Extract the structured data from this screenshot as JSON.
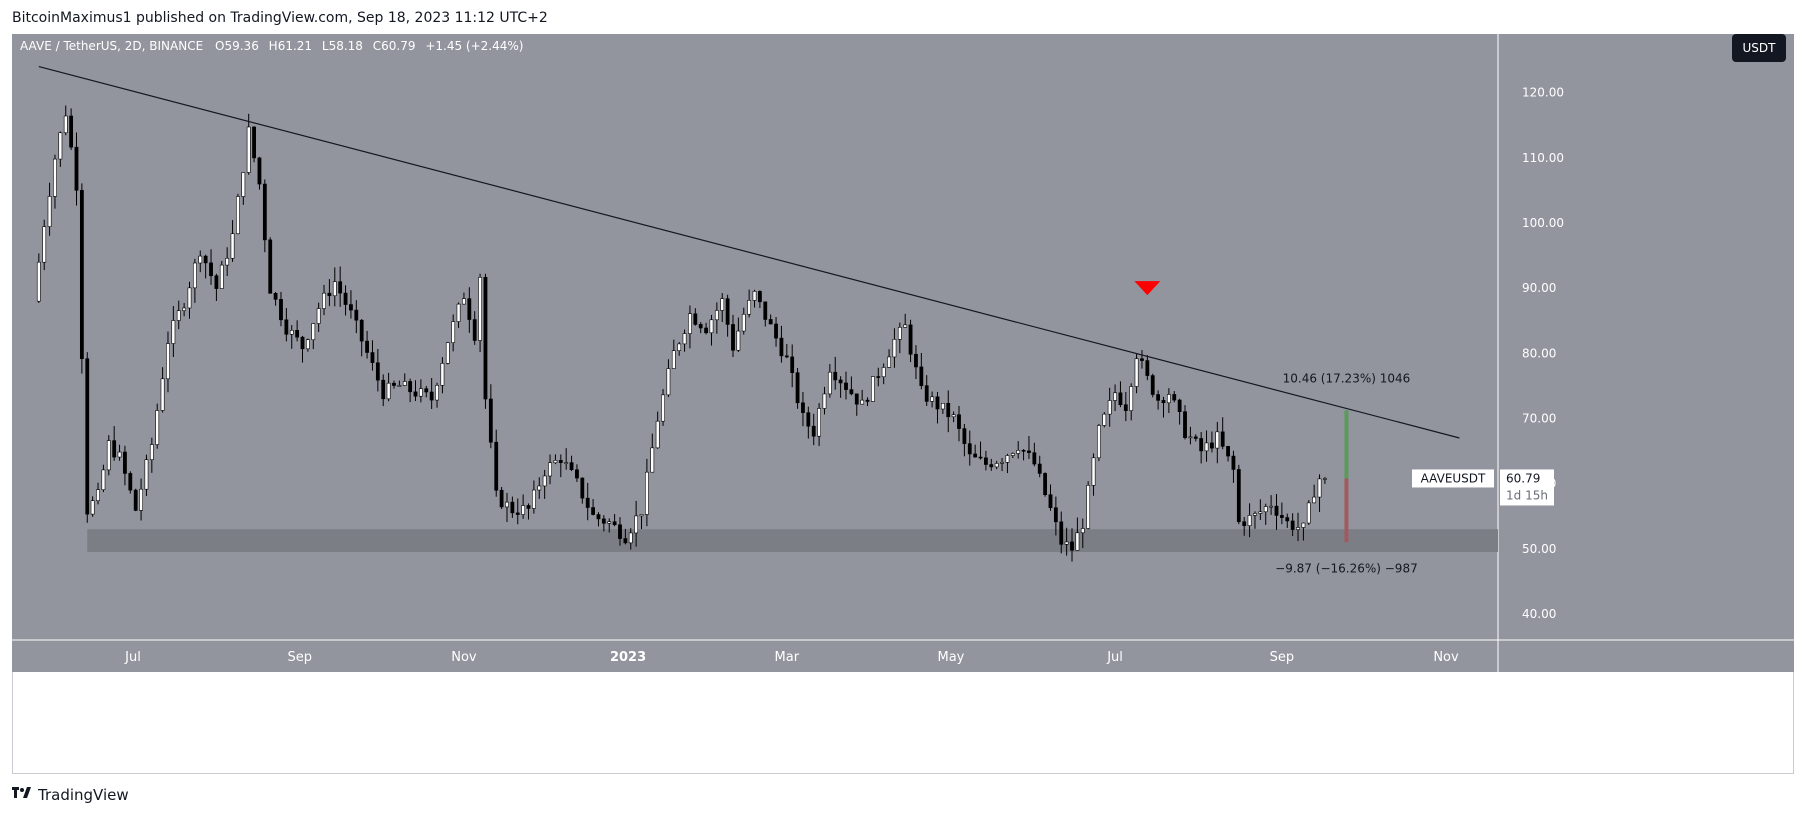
{
  "header": {
    "publish_text": "BitcoinMaximus1 published on TradingView.com, Sep 18, 2023 11:12 UTC+2"
  },
  "footer": {
    "brand": "TradingView"
  },
  "symbol_bar": {
    "title": "AAVE / TetherUS, 2D, BINANCE",
    "open_label": "O",
    "open": "59.36",
    "high_label": "H",
    "high": "61.21",
    "low_label": "L",
    "low": "58.18",
    "close_label": "C",
    "close": "60.79",
    "change": "+1.45 (+2.44%)"
  },
  "currency_button": "USDT",
  "price_tag": {
    "symbol": "AAVEUSDT",
    "price": "60.79",
    "countdown": "1d 15h"
  },
  "annotations": {
    "upper": "10.46 (17.23%) 1046",
    "lower": "−9.87 (−16.26%) −987"
  },
  "colors": {
    "background": "#93959e",
    "candle_up": "#ffffff",
    "candle_down": "#000000",
    "support_zone": "#7c7e86",
    "target_up": "#5a9a5a",
    "target_down": "#a05a5e",
    "marker": "#ff0000"
  },
  "chart_data": {
    "type": "candlestick",
    "symbol": "AAVEUSDT",
    "timeframe": "2D",
    "exchange": "BINANCE",
    "y_axis": {
      "ticks": [
        40,
        50,
        60,
        70,
        80,
        90,
        100,
        110,
        120
      ],
      "labels": [
        "40.00",
        "50.00",
        "60.00",
        "70.00",
        "80.00",
        "90.00",
        "100.00",
        "110.00",
        "120.00"
      ],
      "range": [
        36,
        129
      ]
    },
    "x_axis": {
      "labels": [
        "Jul",
        "Sep",
        "Nov",
        "2023",
        "Mar",
        "May",
        "Jul",
        "Sep",
        "Nov"
      ]
    },
    "keypoints": [
      {
        "d": "2022-05-27",
        "p": 88
      },
      {
        "d": "2022-05-31",
        "p": 100
      },
      {
        "d": "2022-06-04",
        "p": 110
      },
      {
        "d": "2022-06-08",
        "p": 117
      },
      {
        "d": "2022-06-12",
        "p": 106
      },
      {
        "d": "2022-06-14",
        "p": 80
      },
      {
        "d": "2022-06-16",
        "p": 56
      },
      {
        "d": "2022-06-20",
        "p": 58
      },
      {
        "d": "2022-06-24",
        "p": 66
      },
      {
        "d": "2022-06-28",
        "p": 64
      },
      {
        "d": "2022-07-04",
        "p": 56
      },
      {
        "d": "2022-07-10",
        "p": 66
      },
      {
        "d": "2022-07-16",
        "p": 82
      },
      {
        "d": "2022-07-22",
        "p": 88
      },
      {
        "d": "2022-07-28",
        "p": 96
      },
      {
        "d": "2022-08-03",
        "p": 90
      },
      {
        "d": "2022-08-09",
        "p": 98
      },
      {
        "d": "2022-08-15",
        "p": 114
      },
      {
        "d": "2022-08-19",
        "p": 106
      },
      {
        "d": "2022-08-23",
        "p": 90
      },
      {
        "d": "2022-08-29",
        "p": 84
      },
      {
        "d": "2022-09-04",
        "p": 81
      },
      {
        "d": "2022-09-10",
        "p": 87
      },
      {
        "d": "2022-09-16",
        "p": 91
      },
      {
        "d": "2022-09-22",
        "p": 86
      },
      {
        "d": "2022-09-28",
        "p": 80
      },
      {
        "d": "2022-10-04",
        "p": 74
      },
      {
        "d": "2022-10-10",
        "p": 75
      },
      {
        "d": "2022-10-16",
        "p": 74
      },
      {
        "d": "2022-10-22",
        "p": 73
      },
      {
        "d": "2022-10-28",
        "p": 82
      },
      {
        "d": "2022-11-03",
        "p": 89
      },
      {
        "d": "2022-11-07",
        "p": 83
      },
      {
        "d": "2022-11-09",
        "p": 92
      },
      {
        "d": "2022-11-11",
        "p": 73
      },
      {
        "d": "2022-11-15",
        "p": 58
      },
      {
        "d": "2022-11-21",
        "p": 56
      },
      {
        "d": "2022-11-27",
        "p": 56
      },
      {
        "d": "2022-12-03",
        "p": 62
      },
      {
        "d": "2022-12-09",
        "p": 64
      },
      {
        "d": "2022-12-15",
        "p": 60
      },
      {
        "d": "2022-12-21",
        "p": 55
      },
      {
        "d": "2022-12-27",
        "p": 54
      },
      {
        "d": "2023-01-02",
        "p": 52
      },
      {
        "d": "2023-01-08",
        "p": 56
      },
      {
        "d": "2023-01-14",
        "p": 70
      },
      {
        "d": "2023-01-20",
        "p": 80
      },
      {
        "d": "2023-01-26",
        "p": 86
      },
      {
        "d": "2023-02-01",
        "p": 84
      },
      {
        "d": "2023-02-07",
        "p": 88
      },
      {
        "d": "2023-02-11",
        "p": 81
      },
      {
        "d": "2023-02-15",
        "p": 86
      },
      {
        "d": "2023-02-19",
        "p": 89
      },
      {
        "d": "2023-02-25",
        "p": 84
      },
      {
        "d": "2023-03-03",
        "p": 79
      },
      {
        "d": "2023-03-09",
        "p": 70
      },
      {
        "d": "2023-03-13",
        "p": 68
      },
      {
        "d": "2023-03-19",
        "p": 78
      },
      {
        "d": "2023-03-25",
        "p": 75
      },
      {
        "d": "2023-03-31",
        "p": 72
      },
      {
        "d": "2023-04-06",
        "p": 77
      },
      {
        "d": "2023-04-12",
        "p": 82
      },
      {
        "d": "2023-04-16",
        "p": 84
      },
      {
        "d": "2023-04-22",
        "p": 74
      },
      {
        "d": "2023-04-28",
        "p": 72
      },
      {
        "d": "2023-05-04",
        "p": 70
      },
      {
        "d": "2023-05-10",
        "p": 64
      },
      {
        "d": "2023-05-16",
        "p": 63
      },
      {
        "d": "2023-05-22",
        "p": 64
      },
      {
        "d": "2023-05-28",
        "p": 66
      },
      {
        "d": "2023-06-03",
        "p": 63
      },
      {
        "d": "2023-06-09",
        "p": 56
      },
      {
        "d": "2023-06-13",
        "p": 51
      },
      {
        "d": "2023-06-17",
        "p": 50
      },
      {
        "d": "2023-06-21",
        "p": 54
      },
      {
        "d": "2023-06-27",
        "p": 68
      },
      {
        "d": "2023-07-03",
        "p": 74
      },
      {
        "d": "2023-07-07",
        "p": 72
      },
      {
        "d": "2023-07-11",
        "p": 80
      },
      {
        "d": "2023-07-15",
        "p": 76
      },
      {
        "d": "2023-07-19",
        "p": 73
      },
      {
        "d": "2023-07-23",
        "p": 74
      },
      {
        "d": "2023-07-29",
        "p": 68
      },
      {
        "d": "2023-08-04",
        "p": 65
      },
      {
        "d": "2023-08-10",
        "p": 67
      },
      {
        "d": "2023-08-16",
        "p": 62
      },
      {
        "d": "2023-08-18",
        "p": 54
      },
      {
        "d": "2023-08-24",
        "p": 55
      },
      {
        "d": "2023-08-30",
        "p": 57
      },
      {
        "d": "2023-09-05",
        "p": 54
      },
      {
        "d": "2023-09-11",
        "p": 53
      },
      {
        "d": "2023-09-15",
        "p": 59
      },
      {
        "d": "2023-09-17",
        "p": 60.79
      }
    ],
    "trendline": [
      {
        "d": "2022-05-27",
        "p": 124
      },
      {
        "d": "2023-11-06",
        "p": 67
      }
    ],
    "support_zone": [
      49.5,
      53
    ],
    "marker_down": {
      "d": "2023-07-13",
      "p": 90
    },
    "projection": {
      "date": "2023-09-25",
      "upper": [
        60.79,
        71.25
      ],
      "lower": [
        51,
        60.79
      ]
    },
    "last_price": 60.79
  }
}
